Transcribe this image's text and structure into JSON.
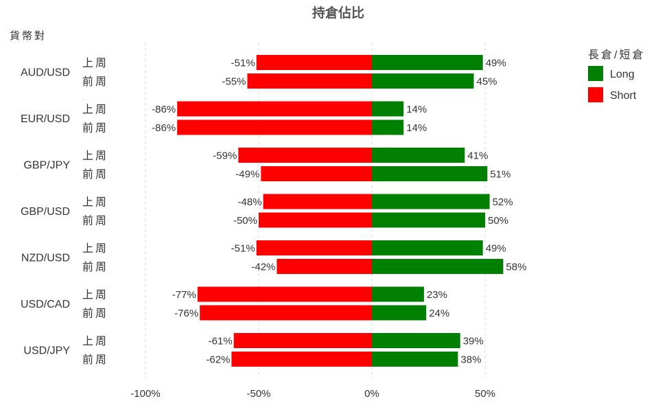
{
  "chart_data": {
    "type": "bar",
    "orientation": "horizontal-diverging",
    "title": "持倉佔比",
    "ylabel": "貨幣對",
    "categories": [
      "AUD/USD",
      "EUR/USD",
      "GBP/JPY",
      "GBP/USD",
      "NZD/USD",
      "USD/CAD",
      "USD/JPY"
    ],
    "periods": [
      "上周",
      "前周"
    ],
    "legend_title": "長倉/短倉",
    "legend_placement": "top-right",
    "grid": true,
    "xlim": [
      -100,
      50
    ],
    "xticks": [
      -100,
      -50,
      0,
      50
    ],
    "xtick_labels": [
      "-100%",
      "-50%",
      "0%",
      "50%"
    ],
    "series": [
      {
        "name": "Long",
        "color": "#008000",
        "values": [
          [
            49,
            45
          ],
          [
            14,
            14
          ],
          [
            41,
            51
          ],
          [
            52,
            50
          ],
          [
            49,
            58
          ],
          [
            23,
            24
          ],
          [
            39,
            38
          ]
        ],
        "labels": [
          [
            "49%",
            "45%"
          ],
          [
            "14%",
            "14%"
          ],
          [
            "41%",
            "51%"
          ],
          [
            "52%",
            "50%"
          ],
          [
            "49%",
            "58%"
          ],
          [
            "23%",
            "24%"
          ],
          [
            "39%",
            "38%"
          ]
        ]
      },
      {
        "name": "Short",
        "color": "#ff0000",
        "values": [
          [
            -51,
            -55
          ],
          [
            -86,
            -86
          ],
          [
            -59,
            -49
          ],
          [
            -48,
            -50
          ],
          [
            -51,
            -42
          ],
          [
            -77,
            -76
          ],
          [
            -61,
            -62
          ]
        ],
        "labels": [
          [
            "-51%",
            "-55%"
          ],
          [
            "-86%",
            "-86%"
          ],
          [
            "-59%",
            "-49%"
          ],
          [
            "-48%",
            "-50%"
          ],
          [
            "-51%",
            "-42%"
          ],
          [
            "-77%",
            "-76%"
          ],
          [
            "-61%",
            "-62%"
          ]
        ]
      }
    ]
  }
}
